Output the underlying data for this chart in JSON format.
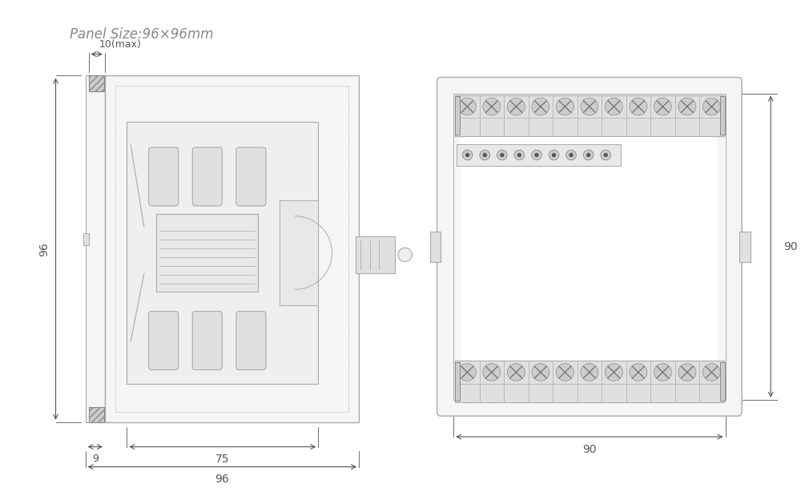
{
  "title": "Panel Size:96×96mm",
  "title_color": "#888888",
  "bg_color": "#ffffff",
  "line_color": "#aaaaaa",
  "dark_line_color": "#888888",
  "dim_color": "#555555",
  "left_view": {
    "label_96_height": "96",
    "label_75": "75",
    "label_96_width": "96",
    "label_9": "9",
    "label_10max": "10(max)"
  },
  "right_view": {
    "label_90_height": "90",
    "label_90_width": "90"
  }
}
